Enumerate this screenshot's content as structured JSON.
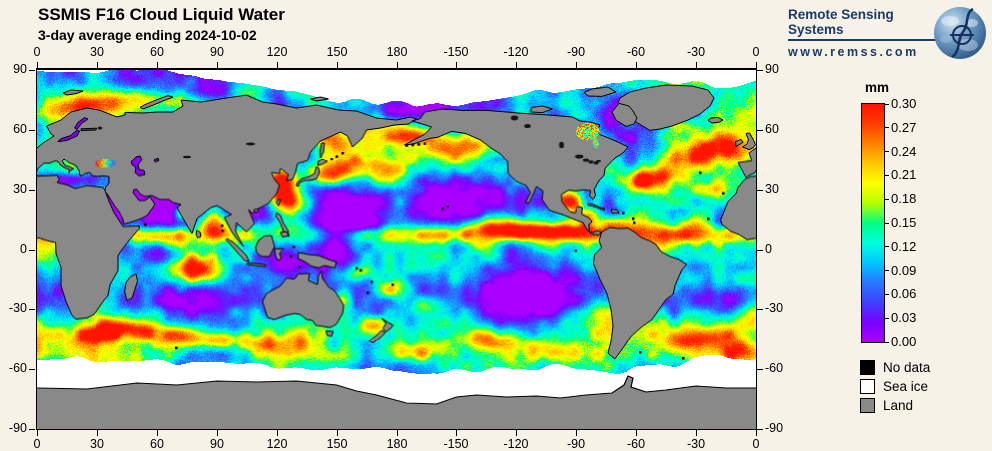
{
  "header": {
    "title": "SSMIS F16 Cloud Liquid Water",
    "subtitle": "3-day average ending 2024-10-02"
  },
  "branding": {
    "name": "Remote Sensing Systems",
    "url": "www.remss.com",
    "globe_icon": "earth-globe-with-integral-symbol"
  },
  "axes": {
    "longitude_ticks": [
      "0",
      "30",
      "60",
      "90",
      "120",
      "150",
      "180",
      "-150",
      "-120",
      "-90",
      "-60",
      "-30",
      "0"
    ],
    "latitude_ticks": [
      "90",
      "60",
      "30",
      "0",
      "-30",
      "-60",
      "-90"
    ]
  },
  "colorbar": {
    "unit": "mm",
    "tick_labels": [
      "0.30",
      "0.27",
      "0.24",
      "0.21",
      "0.18",
      "0.15",
      "0.12",
      "0.09",
      "0.06",
      "0.03",
      "0.00"
    ],
    "value_min": "0.00",
    "value_max": "0.30",
    "gradient_bottom_to_top": [
      "#aa00ff",
      "#7a00ff",
      "#4040ff",
      "#2878ff",
      "#00c8ff",
      "#00ffdc",
      "#00ff82",
      "#b4ff00",
      "#ffff00",
      "#ffc800",
      "#ff8200",
      "#ff3c00",
      "#ff1400"
    ]
  },
  "legend": {
    "items": [
      {
        "label": "No data",
        "color": "#000000"
      },
      {
        "label": "Sea ice",
        "color": "#ffffff"
      },
      {
        "label": "Land",
        "color": "#898989"
      }
    ]
  },
  "colors": {
    "background": "#f6f2e7",
    "land": "#898989",
    "sea_ice": "#ffffff",
    "no_data": "#000000",
    "coastline": "#000000",
    "logo_text": "#1c3a6a"
  }
}
